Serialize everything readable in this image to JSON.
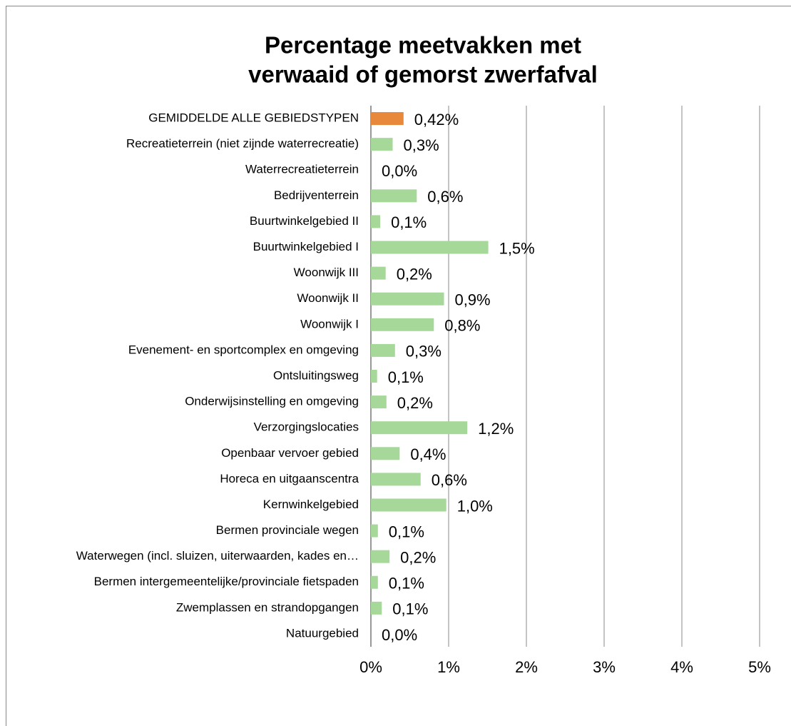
{
  "chart_data": {
    "type": "hbar",
    "title": [
      "Percentage meetvakken met",
      "verwaaid of gemorst zwerfafval"
    ],
    "categories": [
      "GEMIDDELDE ALLE GEBIEDSTYPEN",
      "Recreatieterrein (niet zijnde waterrecreatie)",
      "Waterrecreatieterrein",
      "Bedrijventerrein",
      "Buurtwinkelgebied II",
      "Buurtwinkelgebied I",
      "Woonwijk III",
      "Woonwijk II",
      "Woonwijk I",
      "Evenement- en sportcomplex en omgeving",
      "Ontsluitingsweg",
      "Onderwijsinstelling en omgeving",
      "Verzorgingslocaties",
      "Openbaar vervoer gebied",
      "Horeca en uitgaanscentra",
      "Kernwinkelgebied",
      "Bermen provinciale wegen",
      "Waterwegen (incl. sluizen, uiterwaarden, kades en…",
      "Bermen intergemeentelijke/provinciale fietspaden",
      "Zwemplassen en strandopgangen",
      "Natuurgebied"
    ],
    "values": [
      0.42,
      0.28,
      0,
      0.59,
      0.12,
      1.51,
      0.19,
      0.94,
      0.81,
      0.31,
      0.08,
      0.2,
      1.24,
      0.37,
      0.64,
      0.97,
      0.09,
      0.24,
      0.09,
      0.14,
      0
    ],
    "value_labels": [
      "0,42%",
      "0,3%",
      "0,0%",
      "0,6%",
      "0,1%",
      "1,5%",
      "0,2%",
      "0,9%",
      "0,8%",
      "0,3%",
      "0,1%",
      "0,2%",
      "1,2%",
      "0,4%",
      "0,6%",
      "1,0%",
      "0,1%",
      "0,2%",
      "0,1%",
      "0,1%",
      "0,0%"
    ],
    "colors": [
      "#e8883a",
      "#a6d89a",
      "#a6d89a",
      "#a6d89a",
      "#a6d89a",
      "#a6d89a",
      "#a6d89a",
      "#a6d89a",
      "#a6d89a",
      "#a6d89a",
      "#a6d89a",
      "#a6d89a",
      "#a6d89a",
      "#a6d89a",
      "#a6d89a",
      "#a6d89a",
      "#a6d89a",
      "#a6d89a",
      "#a6d89a",
      "#a6d89a",
      "#a6d89a"
    ],
    "xlim": [
      0,
      5
    ],
    "xticks": [
      {
        "value": 0,
        "label": "0%"
      },
      {
        "value": 1,
        "label": "1%"
      },
      {
        "value": 2,
        "label": "2%"
      },
      {
        "value": 3,
        "label": "3%"
      },
      {
        "value": 4,
        "label": "4%"
      },
      {
        "value": 5,
        "label": "5%"
      }
    ],
    "grid": true
  }
}
